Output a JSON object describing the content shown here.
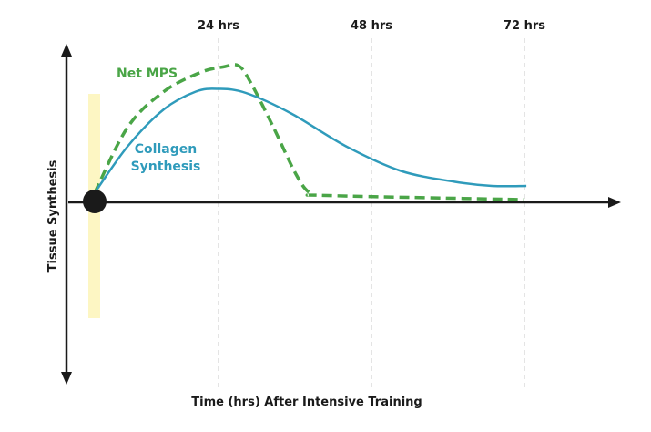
{
  "chart_data": {
    "type": "line",
    "xlabel": "Time (hrs) After Intensive Training",
    "ylabel": "Tissue Synthesis",
    "x_ticks": [
      {
        "value": 24,
        "label": "24 hrs"
      },
      {
        "value": 48,
        "label": "48 hrs"
      },
      {
        "value": 72,
        "label": "72 hrs"
      }
    ],
    "xlim": [
      0,
      72
    ],
    "ylim": [
      -130,
      115
    ],
    "grid": "vertical dashed at ticks",
    "series": [
      {
        "name": "Net MPS",
        "color": "#4aa547",
        "style": "dashed",
        "x": [
          0,
          6.4,
          13.4,
          20.5,
          24.7,
          27.1,
          29,
          32.6,
          36.1,
          38.3,
          41.1,
          72
        ],
        "y": [
          7,
          55,
          81,
          95,
          99,
          100,
          88,
          55,
          21,
          7,
          5,
          2
        ]
      },
      {
        "name": "Collagen Synthesis",
        "label_lines": [
          "Collagen",
          "Synthesis"
        ],
        "color": "#2f9bbb",
        "style": "solid",
        "x": [
          0,
          6.4,
          13.4,
          19.6,
          24,
          28.3,
          35.4,
          44,
          52.6,
          61.1,
          66.9,
          72.3
        ],
        "y": [
          7,
          41,
          68,
          81,
          83,
          80,
          65,
          41,
          23,
          15,
          12,
          12
        ]
      }
    ],
    "annotations": {
      "start_marker_color": "#1a1a1a",
      "training_band_color": "#fdf6c3"
    }
  }
}
